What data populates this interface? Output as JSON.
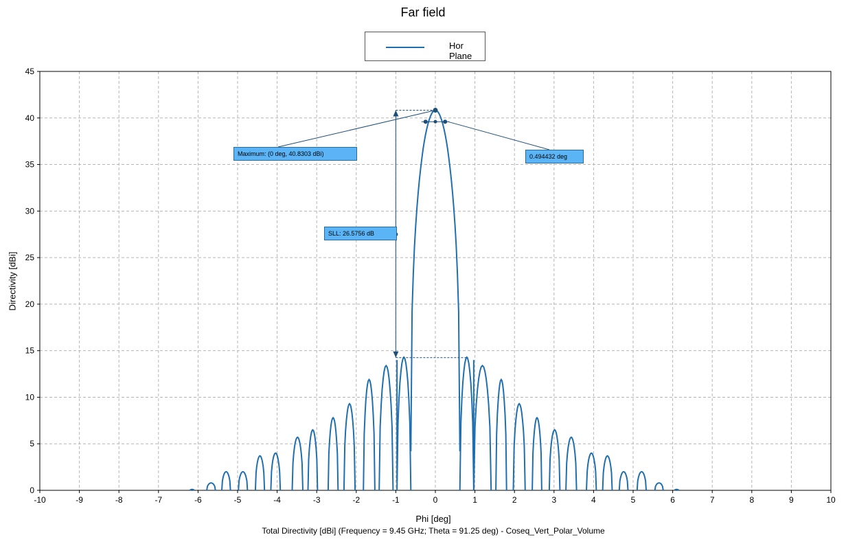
{
  "chart_data": {
    "type": "line",
    "title": "Far field",
    "xlabel": "Phi [deg]",
    "ylabel": "Directivity [dBi]",
    "caption": "Total Directivity [dBi] (Frequency = 9.45 GHz; Theta = 91.25 deg) - Coseq_Vert_Polar_Volume",
    "xlim": [
      -10,
      10
    ],
    "ylim": [
      0,
      45
    ],
    "x_ticks": [
      "-10",
      "-9",
      "-8",
      "-7",
      "-6",
      "-5",
      "-4",
      "-3",
      "-2",
      "-1",
      "0",
      "1",
      "2",
      "3",
      "4",
      "5",
      "6",
      "7",
      "8",
      "9",
      "10"
    ],
    "y_ticks": [
      "0",
      "5",
      "10",
      "15",
      "20",
      "25",
      "30",
      "35",
      "40",
      "45"
    ],
    "grid": true,
    "legend_position": "top-center",
    "series": [
      {
        "name": "Hor Plane",
        "color": "#1f6fb0",
        "main_lobe": {
          "peak": 40.8303,
          "null_left": -0.62,
          "null_right": 0.62,
          "floor_left": 4.2,
          "floor_right": 4.2
        },
        "side_lobes": [
          {
            "l": -6.2,
            "r": -6.1,
            "peak": 0.1
          },
          {
            "l": -5.78,
            "r": -5.56,
            "peak": 0.8
          },
          {
            "l": -5.4,
            "r": -5.18,
            "peak": 2.0
          },
          {
            "l": -4.98,
            "r": -4.75,
            "peak": 2.0
          },
          {
            "l": -4.55,
            "r": -4.32,
            "peak": 3.7
          },
          {
            "l": -4.16,
            "r": -3.92,
            "peak": 4.0
          },
          {
            "l": -3.62,
            "r": -3.35,
            "peak": 5.7
          },
          {
            "l": -3.22,
            "r": -2.98,
            "peak": 6.5
          },
          {
            "l": -2.71,
            "r": -2.46,
            "peak": 7.8
          },
          {
            "l": -2.31,
            "r": -2.03,
            "peak": 9.3
          },
          {
            "l": -1.82,
            "r": -1.53,
            "peak": 11.9
          },
          {
            "l": -1.42,
            "r": -1.07,
            "peak": 13.4
          },
          {
            "l": -0.97,
            "r": -0.62,
            "peak": 14.3
          },
          {
            "l": 0.62,
            "r": 0.97,
            "peak": 14.3
          },
          {
            "l": 0.97,
            "r": 1.41,
            "peak": 13.4
          },
          {
            "l": 1.53,
            "r": 1.8,
            "peak": 11.9
          },
          {
            "l": 1.97,
            "r": 2.27,
            "peak": 9.3
          },
          {
            "l": 2.45,
            "r": 2.69,
            "peak": 7.8
          },
          {
            "l": 2.88,
            "r": 3.15,
            "peak": 6.5
          },
          {
            "l": 3.3,
            "r": 3.57,
            "peak": 5.7
          },
          {
            "l": 3.82,
            "r": 4.07,
            "peak": 4.0
          },
          {
            "l": 4.23,
            "r": 4.47,
            "peak": 3.7
          },
          {
            "l": 4.65,
            "r": 4.87,
            "peak": 2.0
          },
          {
            "l": 5.1,
            "r": 5.33,
            "peak": 2.0
          },
          {
            "l": 5.55,
            "r": 5.76,
            "peak": 0.8
          },
          {
            "l": 6.05,
            "r": 6.15,
            "peak": 0.1
          }
        ],
        "inner_nulls": [
          {
            "x": -0.97,
            "y": 1.0
          },
          {
            "x": 0.97,
            "y": 2.9
          }
        ]
      }
    ],
    "annotations": {
      "maximum": {
        "text": "Maximum: (0 deg, 40.8303 dBi)",
        "x": 0,
        "y": 40.8303
      },
      "beamwidth": {
        "text": "0.494432 deg",
        "x_left": -0.247,
        "x_right": 0.247,
        "y": 39.6
      },
      "sll": {
        "text": "SLL: 26.5756 dB",
        "x": -1.0,
        "y_top": 40.8303,
        "y_bottom": 14.2547,
        "y_mid": 27.5
      }
    }
  }
}
